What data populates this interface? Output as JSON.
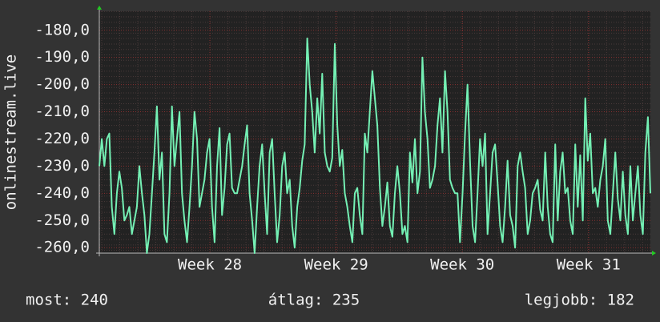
{
  "chart_data": {
    "type": "line",
    "y_label": "onlinestream.live",
    "ylim": [
      -262,
      -173
    ],
    "yticks": [
      {
        "value": -180,
        "label": "-180,0"
      },
      {
        "value": -190,
        "label": "-190,0"
      },
      {
        "value": -200,
        "label": "-200,0"
      },
      {
        "value": -210,
        "label": "-210,0"
      },
      {
        "value": -220,
        "label": "-220,0"
      },
      {
        "value": -230,
        "label": "-230,0"
      },
      {
        "value": -240,
        "label": "-240,0"
      },
      {
        "value": -250,
        "label": "-250,0"
      },
      {
        "value": -260,
        "label": "-260,0"
      }
    ],
    "xlim": [
      27.124,
      31.49
    ],
    "xticks": [
      {
        "value": 28,
        "label": "Week 28"
      },
      {
        "value": 29,
        "label": "Week 29"
      },
      {
        "value": 30,
        "label": "Week 30"
      },
      {
        "value": 31,
        "label": "Week 31"
      }
    ],
    "grid": true,
    "series": [
      {
        "color": "#74f0b4",
        "values": [
          -230,
          -220,
          -230,
          -220,
          -218,
          -245,
          -255,
          -240,
          -232,
          -238,
          -250,
          -248,
          -245,
          -255,
          -250,
          -245,
          -230,
          -240,
          -248,
          -262,
          -255,
          -240,
          -225,
          -208,
          -235,
          -225,
          -255,
          -258,
          -240,
          -208,
          -230,
          -220,
          -210,
          -240,
          -250,
          -258,
          -245,
          -230,
          -210,
          -220,
          -245,
          -240,
          -235,
          -225,
          -220,
          -245,
          -258,
          -230,
          -216,
          -248,
          -238,
          -222,
          -218,
          -238,
          -240,
          -240,
          -235,
          -230,
          -222,
          -215,
          -240,
          -250,
          -262,
          -245,
          -230,
          -222,
          -240,
          -255,
          -225,
          -220,
          -240,
          -258,
          -248,
          -230,
          -225,
          -240,
          -235,
          -252,
          -260,
          -245,
          -238,
          -228,
          -222,
          -183,
          -200,
          -210,
          -225,
          -205,
          -218,
          -196,
          -225,
          -230,
          -232,
          -227,
          -185,
          -215,
          -230,
          -224,
          -240,
          -245,
          -252,
          -258,
          -240,
          -238,
          -248,
          -255,
          -218,
          -225,
          -210,
          -195,
          -205,
          -215,
          -238,
          -252,
          -245,
          -236,
          -252,
          -256,
          -240,
          -230,
          -240,
          -255,
          -252,
          -258,
          -225,
          -236,
          -220,
          -240,
          -232,
          -190,
          -210,
          -220,
          -238,
          -235,
          -230,
          -215,
          -205,
          -225,
          -195,
          -210,
          -235,
          -238,
          -240,
          -240,
          -258,
          -240,
          -218,
          -200,
          -228,
          -252,
          -258,
          -240,
          -220,
          -230,
          -218,
          -255,
          -240,
          -225,
          -222,
          -236,
          -252,
          -258,
          -245,
          -228,
          -248,
          -252,
          -260,
          -230,
          -225,
          -232,
          -238,
          -255,
          -250,
          -240,
          -238,
          -235,
          -246,
          -250,
          -225,
          -245,
          -255,
          -258,
          -222,
          -250,
          -232,
          -225,
          -240,
          -238,
          -250,
          -255,
          -222,
          -245,
          -226,
          -250,
          -205,
          -228,
          -218,
          -240,
          -238,
          -245,
          -235,
          -230,
          -220,
          -250,
          -255,
          -240,
          -225,
          -242,
          -250,
          -232,
          -248,
          -255,
          -230,
          -250,
          -240,
          -230,
          -248,
          -255,
          -225,
          -212,
          -240
        ]
      }
    ],
    "footer": [
      "most: 240",
      "átlag: 235",
      "legjobb: 182"
    ]
  }
}
